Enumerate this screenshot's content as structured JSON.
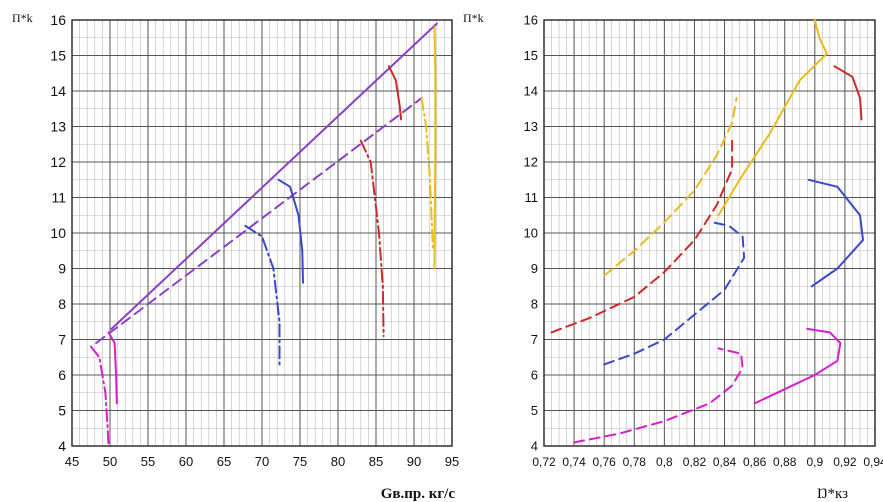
{
  "chart_data": [
    {
      "type": "line",
      "title": "",
      "ylabel": "П*k",
      "xlabel": "Gв.пр. кг/с",
      "xlim": [
        45,
        95
      ],
      "ylim": [
        4,
        16
      ],
      "x_ticks": [
        "45",
        "50",
        "55",
        "60",
        "65",
        "70",
        "75",
        "80",
        "85",
        "90",
        "95"
      ],
      "y_ticks": [
        "4",
        "5",
        "6",
        "7",
        "8",
        "9",
        "10",
        "11",
        "12",
        "13",
        "14",
        "15",
        "16"
      ],
      "grid": true,
      "series": [
        {
          "color": "#8a3fc4",
          "dash": "solid",
          "points": [
            [
              50.2,
              7.3
            ],
            [
              93,
              15.9
            ]
          ]
        },
        {
          "color": "#8a3fc4",
          "dash": "dashed",
          "points": [
            [
              48.2,
              6.9
            ],
            [
              91,
              13.8
            ]
          ]
        },
        {
          "color": "#e8bb1e",
          "dash": "solid",
          "points": [
            [
              92.7,
              15.8
            ],
            [
              92.8,
              14.5
            ],
            [
              92.8,
              12.5
            ],
            [
              92.7,
              9
            ]
          ]
        },
        {
          "color": "#e8bb1e",
          "dash": "dashdot",
          "points": [
            [
              91,
              13.8
            ],
            [
              91.6,
              13
            ],
            [
              92.1,
              11.5
            ],
            [
              92.5,
              9.5
            ]
          ]
        },
        {
          "color": "#cc2a2a",
          "dash": "solid",
          "points": [
            [
              86.7,
              14.7
            ],
            [
              87.6,
              14.3
            ],
            [
              88.1,
              13.6
            ],
            [
              88.3,
              13.2
            ]
          ]
        },
        {
          "color": "#cc2a2a",
          "dash": "dashdot",
          "points": [
            [
              83,
              12.6
            ],
            [
              84.3,
              12
            ],
            [
              85.4,
              10
            ],
            [
              85.9,
              8.5
            ],
            [
              86,
              7.1
            ]
          ]
        },
        {
          "color": "#3b48c8",
          "dash": "solid",
          "points": [
            [
              72.2,
              11.5
            ],
            [
              73.7,
              11.3
            ],
            [
              74.8,
              10.5
            ],
            [
              75.3,
              9.5
            ],
            [
              75.4,
              8.6
            ]
          ]
        },
        {
          "color": "#3b48c8",
          "dash": "dashdot",
          "points": [
            [
              67.8,
              10.2
            ],
            [
              70,
              9.9
            ],
            [
              71.5,
              9
            ],
            [
              72.3,
              7.5
            ],
            [
              72.3,
              6.3
            ]
          ]
        },
        {
          "color": "#d61fc8",
          "dash": "solid",
          "points": [
            [
              49.8,
              7.2
            ],
            [
              50.6,
              6.9
            ],
            [
              50.8,
              6
            ],
            [
              50.9,
              5.2
            ]
          ]
        },
        {
          "color": "#d61fc8",
          "dash": "dashdot",
          "points": [
            [
              47.5,
              6.8
            ],
            [
              48.6,
              6.5
            ],
            [
              49.4,
              5.5
            ],
            [
              49.7,
              4.5
            ],
            [
              49.8,
              4
            ]
          ]
        }
      ]
    },
    {
      "type": "line",
      "title": "",
      "ylabel": "П*k",
      "xlabel": "Ŋ*кз",
      "xlim": [
        0.72,
        0.94
      ],
      "ylim": [
        4,
        16
      ],
      "x_ticks": [
        "0,72",
        "0,74",
        "0,76",
        "0,78",
        "0,8",
        "0,82",
        "0,84",
        "0,86",
        "0,88",
        "0,9",
        "0,92",
        "0,94"
      ],
      "y_ticks": [
        "4",
        "5",
        "6",
        "7",
        "8",
        "9",
        "10",
        "11",
        "12",
        "13",
        "14",
        "15",
        "16"
      ],
      "grid": true,
      "series": [
        {
          "color": "#e8bb1e",
          "dash": "solid",
          "points": [
            [
              0.836,
              10.5
            ],
            [
              0.85,
              11.5
            ],
            [
              0.87,
              12.8
            ],
            [
              0.89,
              14.3
            ],
            [
              0.908,
              15.05
            ],
            [
              0.903,
              15.5
            ],
            [
              0.9,
              16
            ]
          ]
        },
        {
          "color": "#e8bb1e",
          "dash": "dashed",
          "points": [
            [
              0.76,
              8.8
            ],
            [
              0.78,
              9.5
            ],
            [
              0.8,
              10.3
            ],
            [
              0.82,
              11.2
            ],
            [
              0.835,
              12.2
            ],
            [
              0.845,
              13.1
            ],
            [
              0.848,
              13.8
            ]
          ]
        },
        {
          "color": "#cc2a2a",
          "dash": "solid",
          "points": [
            [
              0.913,
              14.7
            ],
            [
              0.925,
              14.4
            ],
            [
              0.93,
              13.8
            ],
            [
              0.931,
              13.2
            ]
          ]
        },
        {
          "color": "#cc2a2a",
          "dash": "dashed",
          "points": [
            [
              0.725,
              7.2
            ],
            [
              0.75,
              7.6
            ],
            [
              0.78,
              8.2
            ],
            [
              0.8,
              8.9
            ],
            [
              0.82,
              9.8
            ],
            [
              0.835,
              10.8
            ],
            [
              0.845,
              11.8
            ],
            [
              0.845,
              12.6
            ]
          ]
        },
        {
          "color": "#3b48c8",
          "dash": "solid",
          "points": [
            [
              0.896,
              11.5
            ],
            [
              0.915,
              11.3
            ],
            [
              0.93,
              10.5
            ],
            [
              0.932,
              9.8
            ],
            [
              0.915,
              9
            ],
            [
              0.898,
              8.5
            ]
          ]
        },
        {
          "color": "#3b48c8",
          "dash": "dashed",
          "points": [
            [
              0.76,
              6.3
            ],
            [
              0.78,
              6.6
            ],
            [
              0.8,
              7
            ],
            [
              0.82,
              7.7
            ],
            [
              0.84,
              8.4
            ],
            [
              0.853,
              9.3
            ],
            [
              0.852,
              9.9
            ],
            [
              0.843,
              10.2
            ],
            [
              0.832,
              10.3
            ]
          ]
        },
        {
          "color": "#d61fc8",
          "dash": "solid",
          "points": [
            [
              0.86,
              5.2
            ],
            [
              0.88,
              5.6
            ],
            [
              0.9,
              6
            ],
            [
              0.915,
              6.4
            ],
            [
              0.917,
              6.9
            ],
            [
              0.91,
              7.2
            ],
            [
              0.895,
              7.3
            ]
          ]
        },
        {
          "color": "#d61fc8",
          "dash": "dashed",
          "points": [
            [
              0.74,
              4.1
            ],
            [
              0.77,
              4.35
            ],
            [
              0.8,
              4.7
            ],
            [
              0.83,
              5.2
            ],
            [
              0.845,
              5.7
            ],
            [
              0.852,
              6.2
            ],
            [
              0.851,
              6.6
            ],
            [
              0.836,
              6.75
            ]
          ]
        }
      ]
    }
  ]
}
